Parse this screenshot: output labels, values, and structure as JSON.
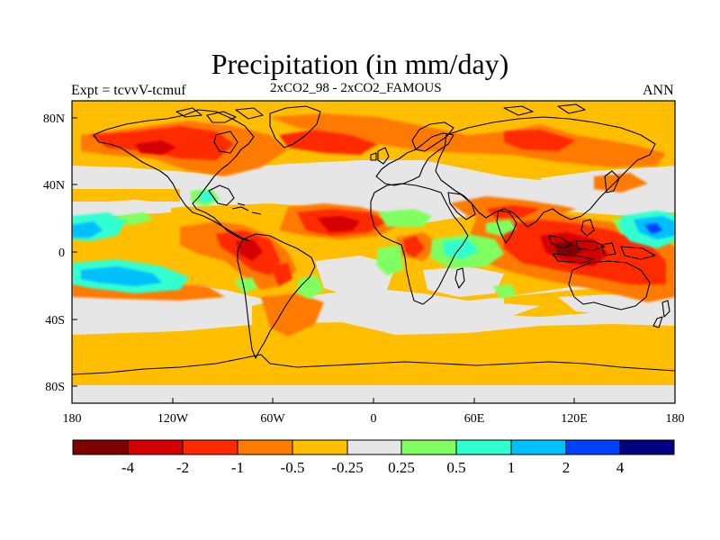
{
  "header": {
    "title": "Precipitation (in mm/day)",
    "left_label": "Expt = tcvvV-tcmuf",
    "center_label": "2xCO2_98 - 2xCO2_FAMOUS",
    "right_label": "ANN"
  },
  "map": {
    "projection": "cylindrical-equidistant",
    "lon_range": [
      -180,
      180
    ],
    "lat_range": [
      -90,
      90
    ],
    "x_tick_labels": [
      "180",
      "120W",
      "60W",
      "0",
      "60E",
      "120E",
      "180"
    ],
    "y_tick_labels": [
      "80N",
      "40N",
      "0",
      "40S",
      "80S"
    ],
    "background_color": "#e6e6e6",
    "coastline_color": "#000000"
  },
  "colorbar": {
    "colors": [
      "#800000",
      "#d40000",
      "#ff2a00",
      "#ff7a00",
      "#ffbf00",
      "#e6e6e6",
      "#80ff60",
      "#30ffd0",
      "#00bfff",
      "#0040ff",
      "#000080"
    ],
    "labels": [
      "-4",
      "-2",
      "-1",
      "-0.5",
      "-0.25",
      "0.25",
      "0.5",
      "1",
      "2",
      "4"
    ]
  }
}
